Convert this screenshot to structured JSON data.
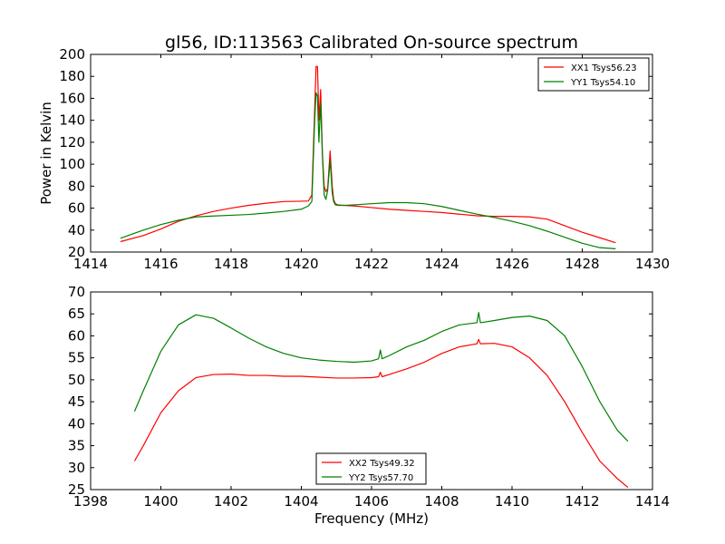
{
  "title": "gl56, ID:113563 Calibrated On-source spectrum",
  "colors": {
    "red": "#ff0000",
    "green": "#008000"
  },
  "chart_data": [
    {
      "type": "line",
      "xlabel": "",
      "ylabel": "Power in Kelvin",
      "xlim": [
        1414,
        1430
      ],
      "ylim": [
        20,
        200
      ],
      "xticks": [
        1414,
        1416,
        1418,
        1420,
        1422,
        1424,
        1426,
        1428,
        1430
      ],
      "yticks": [
        20,
        40,
        60,
        80,
        100,
        120,
        140,
        160,
        180,
        200
      ],
      "legend_position": "top-right",
      "grid": false,
      "series": [
        {
          "name": "XX1 Tsys56.23",
          "color": "#ff0000",
          "x": [
            1414.85,
            1415.5,
            1416.0,
            1416.5,
            1417.0,
            1417.5,
            1418.0,
            1418.5,
            1419.0,
            1419.5,
            1420.0,
            1420.2,
            1420.3,
            1420.38,
            1420.42,
            1420.46,
            1420.5,
            1420.55,
            1420.6,
            1420.65,
            1420.7,
            1420.75,
            1420.82,
            1420.88,
            1420.92,
            1420.97,
            1421.05,
            1421.2,
            1421.5,
            1422.0,
            1422.5,
            1423.0,
            1423.5,
            1424.0,
            1424.5,
            1425.0,
            1425.5,
            1426.0,
            1426.5,
            1427.0,
            1427.5,
            1428.0,
            1428.5,
            1428.95
          ],
          "y": [
            29.5,
            35,
            41,
            48,
            53,
            57,
            60,
            62.5,
            64.5,
            66,
            66.3,
            66.5,
            72,
            150,
            189,
            189,
            140,
            168,
            110,
            80,
            75,
            78,
            112,
            80,
            68,
            64,
            62.8,
            62.5,
            62,
            60.5,
            59,
            58,
            57,
            56,
            54.5,
            53,
            52.5,
            52.5,
            52,
            50,
            44,
            38,
            33,
            28.5
          ]
        },
        {
          "name": "YY1 Tsys54.10",
          "color": "#008000",
          "x": [
            1414.85,
            1415.5,
            1416.0,
            1416.5,
            1417.0,
            1417.5,
            1418.0,
            1418.5,
            1419.0,
            1419.5,
            1420.0,
            1420.2,
            1420.3,
            1420.38,
            1420.42,
            1420.46,
            1420.5,
            1420.55,
            1420.6,
            1420.65,
            1420.7,
            1420.75,
            1420.82,
            1420.88,
            1420.92,
            1420.97,
            1421.05,
            1421.2,
            1421.5,
            1422.0,
            1422.5,
            1423.0,
            1423.5,
            1424.0,
            1424.5,
            1425.0,
            1425.5,
            1426.0,
            1426.5,
            1427.0,
            1427.5,
            1428.0,
            1428.5,
            1428.95
          ],
          "y": [
            32.5,
            40,
            45,
            49,
            52,
            52.8,
            53.5,
            54.2,
            55.5,
            57,
            59,
            62,
            66,
            140,
            165,
            162,
            120,
            156,
            108,
            72,
            68,
            76,
            104,
            74,
            66,
            63,
            62.5,
            62.5,
            63,
            64,
            65,
            65,
            64,
            61.5,
            58,
            54.5,
            51.5,
            48,
            44,
            39,
            33.5,
            28,
            24,
            23
          ]
        }
      ]
    },
    {
      "type": "line",
      "xlabel": "Frequency (MHz)",
      "ylabel": "",
      "xlim": [
        1398,
        1414
      ],
      "ylim": [
        25,
        70
      ],
      "xticks": [
        1398,
        1400,
        1402,
        1404,
        1406,
        1408,
        1410,
        1412,
        1414
      ],
      "yticks": [
        25,
        30,
        35,
        40,
        45,
        50,
        55,
        60,
        65,
        70
      ],
      "legend_position": "lower-center",
      "grid": false,
      "series": [
        {
          "name": "XX2 Tsys49.32",
          "color": "#ff0000",
          "x": [
            1399.25,
            1399.5,
            1400.0,
            1400.5,
            1401.0,
            1401.5,
            1402.0,
            1402.5,
            1403.0,
            1403.5,
            1404.0,
            1404.5,
            1405.0,
            1405.5,
            1406.0,
            1406.2,
            1406.25,
            1406.3,
            1406.5,
            1407.0,
            1407.5,
            1408.0,
            1408.5,
            1409.0,
            1409.05,
            1409.1,
            1409.5,
            1410.0,
            1410.5,
            1411.0,
            1411.5,
            1412.0,
            1412.5,
            1413.0,
            1413.3
          ],
          "y": [
            31.5,
            35,
            42.5,
            47.5,
            50.5,
            51.2,
            51.3,
            51,
            51,
            50.8,
            50.8,
            50.6,
            50.4,
            50.4,
            50.5,
            50.7,
            51.7,
            50.7,
            51.2,
            52.5,
            54,
            56,
            57.5,
            58.2,
            59.2,
            58.2,
            58.3,
            57.5,
            55,
            51,
            45,
            38,
            31.5,
            27.5,
            25.5
          ]
        },
        {
          "name": "YY2 Tsys57.70",
          "color": "#008000",
          "x": [
            1399.25,
            1399.5,
            1400.0,
            1400.5,
            1401.0,
            1401.5,
            1402.0,
            1402.5,
            1403.0,
            1403.5,
            1404.0,
            1404.5,
            1405.0,
            1405.5,
            1406.0,
            1406.2,
            1406.25,
            1406.3,
            1406.5,
            1407.0,
            1407.5,
            1408.0,
            1408.5,
            1409.0,
            1409.05,
            1409.1,
            1409.5,
            1410.0,
            1410.5,
            1411.0,
            1411.5,
            1412.0,
            1412.5,
            1413.0,
            1413.3
          ],
          "y": [
            42.8,
            47.5,
            56.5,
            62.5,
            64.8,
            64,
            61.8,
            59.5,
            57.5,
            56,
            55,
            54.5,
            54.2,
            54,
            54.3,
            54.8,
            56.8,
            54.8,
            55.5,
            57.5,
            59,
            61,
            62.5,
            63,
            65.3,
            63,
            63.5,
            64.2,
            64.5,
            63.5,
            60,
            53,
            45,
            38.5,
            36
          ]
        }
      ]
    }
  ]
}
